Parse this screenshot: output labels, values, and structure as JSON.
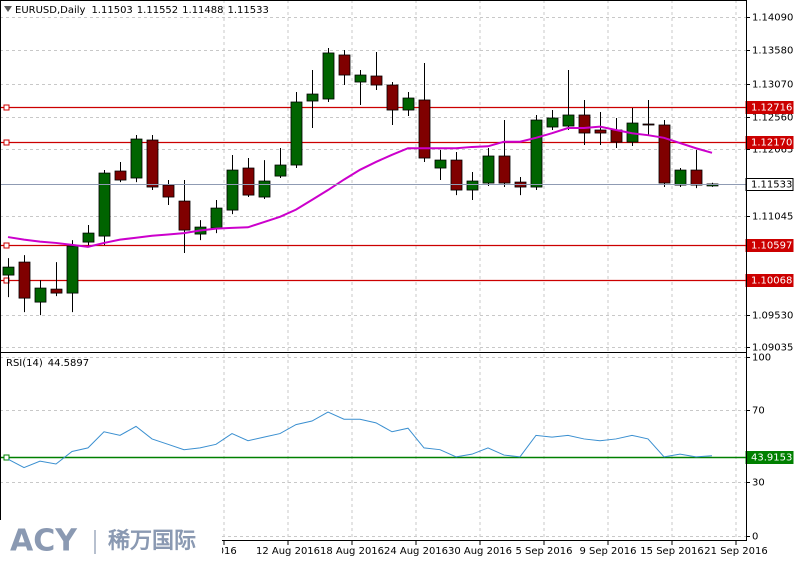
{
  "chart_data": [
    {
      "type": "candlestick",
      "title": "EURUSD,Daily",
      "categories": [
        null,
        null,
        null,
        null,
        null,
        null,
        null,
        null,
        null,
        null,
        null,
        null,
        null,
        "2016",
        null,
        null,
        null,
        "12 Aug 2016",
        null,
        null,
        null,
        "18 Aug 2016",
        null,
        null,
        null,
        "24 Aug 2016",
        null,
        null,
        null,
        "30 Aug 2016",
        null,
        null,
        null,
        "5 Sep 2016",
        null,
        null,
        null,
        "9 Sep 2016",
        null,
        null,
        null,
        "15 Sep 2016",
        null,
        null,
        null,
        "21 Sep 2016"
      ],
      "open": [
        1.10138,
        1.10337,
        1.09724,
        1.09923,
        1.09862,
        1.10643,
        1.10735,
        1.11731,
        1.11624,
        1.12206,
        1.11516,
        1.11271,
        1.10766,
        1.10858,
        1.11133,
        1.11777,
        1.11333,
        1.11654,
        1.11823,
        1.12803,
        1.12834,
        1.13508,
        1.13094,
        1.13186,
        1.13048,
        1.12665,
        1.12819,
        1.11777,
        1.11899,
        1.1144,
        1.11547,
        1.11961,
        1.11562,
        1.11486,
        1.12405,
        1.1242,
        1.12589,
        1.12359,
        1.12359,
        1.12175,
        1.12451,
        1.12436,
        1.11516,
        1.11746,
        1.11503,
        null
      ],
      "high": [
        1.10398,
        1.10444,
        1.10061,
        1.10337,
        1.10674,
        1.10904,
        1.11746,
        1.11869,
        1.12282,
        1.12282,
        1.11593,
        1.11593,
        1.1098,
        1.11287,
        1.11976,
        1.1193,
        1.11899,
        1.12083,
        1.12941,
        1.13278,
        1.13615,
        1.13584,
        1.13278,
        1.13554,
        1.13094,
        1.12941,
        1.13385,
        1.12053,
        1.12022,
        1.11716,
        1.12083,
        1.12512,
        1.11639,
        1.12589,
        1.12665,
        1.13278,
        1.12819,
        1.12635,
        1.12543,
        1.12696,
        1.12819,
        1.12512,
        1.11777,
        1.12053,
        1.11552,
        null
      ],
      "low": [
        1.09801,
        1.09571,
        1.09525,
        1.09816,
        1.09571,
        1.10597,
        1.10597,
        1.11562,
        1.11562,
        1.1144,
        1.1121,
        1.10475,
        1.10674,
        1.10781,
        1.11072,
        1.11333,
        1.11302,
        1.11624,
        1.11777,
        1.1239,
        1.12788,
        1.13048,
        1.12742,
        1.12972,
        1.12436,
        1.12573,
        1.11869,
        1.11593,
        1.11363,
        1.11287,
        1.11501,
        1.11486,
        1.11363,
        1.1144,
        1.12359,
        1.12359,
        1.12129,
        1.12129,
        1.12083,
        1.12114,
        1.12282,
        1.11486,
        1.11486,
        1.1147,
        1.11488,
        null
      ],
      "close": [
        1.1026,
        1.09785,
        1.09939,
        1.09862,
        1.10582,
        1.10781,
        1.117,
        1.11593,
        1.12221,
        1.11486,
        1.11333,
        1.10827,
        1.10873,
        1.11164,
        1.11746,
        1.11363,
        1.11578,
        1.11823,
        1.12788,
        1.1291,
        1.13539,
        1.13201,
        1.13201,
        1.13048,
        1.12665,
        1.12849,
        1.1193,
        1.11899,
        1.1144,
        1.11578,
        1.11961,
        1.11547,
        1.11486,
        1.12512,
        1.12543,
        1.12589,
        1.12313,
        1.12313,
        1.12175,
        1.12466,
        1.12436,
        1.11547,
        1.11746,
        1.11516,
        1.11533,
        null
      ],
      "up_color": "#006400",
      "down_color": "#800000",
      "ma": {
        "color": "#cc00cc",
        "values": [
          1.1072,
          1.1068,
          1.1065,
          1.1063,
          1.106,
          1.1057,
          1.1063,
          1.1068,
          1.1071,
          1.1074,
          1.1076,
          1.1078,
          1.1082,
          1.1085,
          1.1086,
          1.1087,
          1.1095,
          1.1103,
          1.1114,
          1.1129,
          1.1144,
          1.116,
          1.1175,
          1.1187,
          1.1198,
          1.1208,
          1.1208,
          1.1208,
          1.1208,
          1.121,
          1.1211,
          1.1218,
          1.1218,
          1.1224,
          1.1231,
          1.1239,
          1.1239,
          1.1241,
          1.1236,
          1.1231,
          1.1228,
          1.1224,
          1.1216,
          1.1208,
          1.1201,
          null
        ]
      },
      "levels": [
        1.12716,
        {
          "value": 1.1217,
          "label": "1.12170"
        },
        1.10597,
        1.10068
      ],
      "level_color": "#cc0000",
      "price_line_color": "#8f9bb3",
      "ylim": [
        1.0896,
        1.1435
      ],
      "yticks": [
        {
          "value": 1.1409,
          "label": "1.14090"
        },
        {
          "value": 1.1358,
          "label": "1.13580"
        },
        {
          "value": 1.1307,
          "label": "1.13070"
        },
        {
          "value": 1.1256,
          "label": "1.12560"
        },
        1.12065,
        1.11045,
        {
          "value": 1.0953,
          "label": "1.09530"
        },
        1.09035
      ],
      "grid": true
    },
    {
      "type": "line",
      "title": "RSI(14)",
      "values": [
        42.7,
        38,
        41.6,
        40,
        47,
        49,
        58,
        56,
        61,
        54,
        51,
        48,
        49,
        51,
        57,
        53,
        55,
        57,
        62,
        64,
        69,
        65,
        65,
        63,
        58,
        60,
        49,
        48,
        44,
        45.5,
        49,
        45,
        44,
        56,
        55,
        56,
        54,
        53,
        54,
        56,
        54,
        44,
        45.5,
        44,
        44.5897,
        null
      ],
      "color": "#3a8fd0",
      "level": 43.9153,
      "level_color": "#008000",
      "ylim": [
        -3,
        102
      ],
      "yticks": [
        100,
        70,
        30,
        0
      ],
      "grid": true
    }
  ],
  "watermark": {
    "brand": "ACY",
    "name": "稀万国际"
  }
}
